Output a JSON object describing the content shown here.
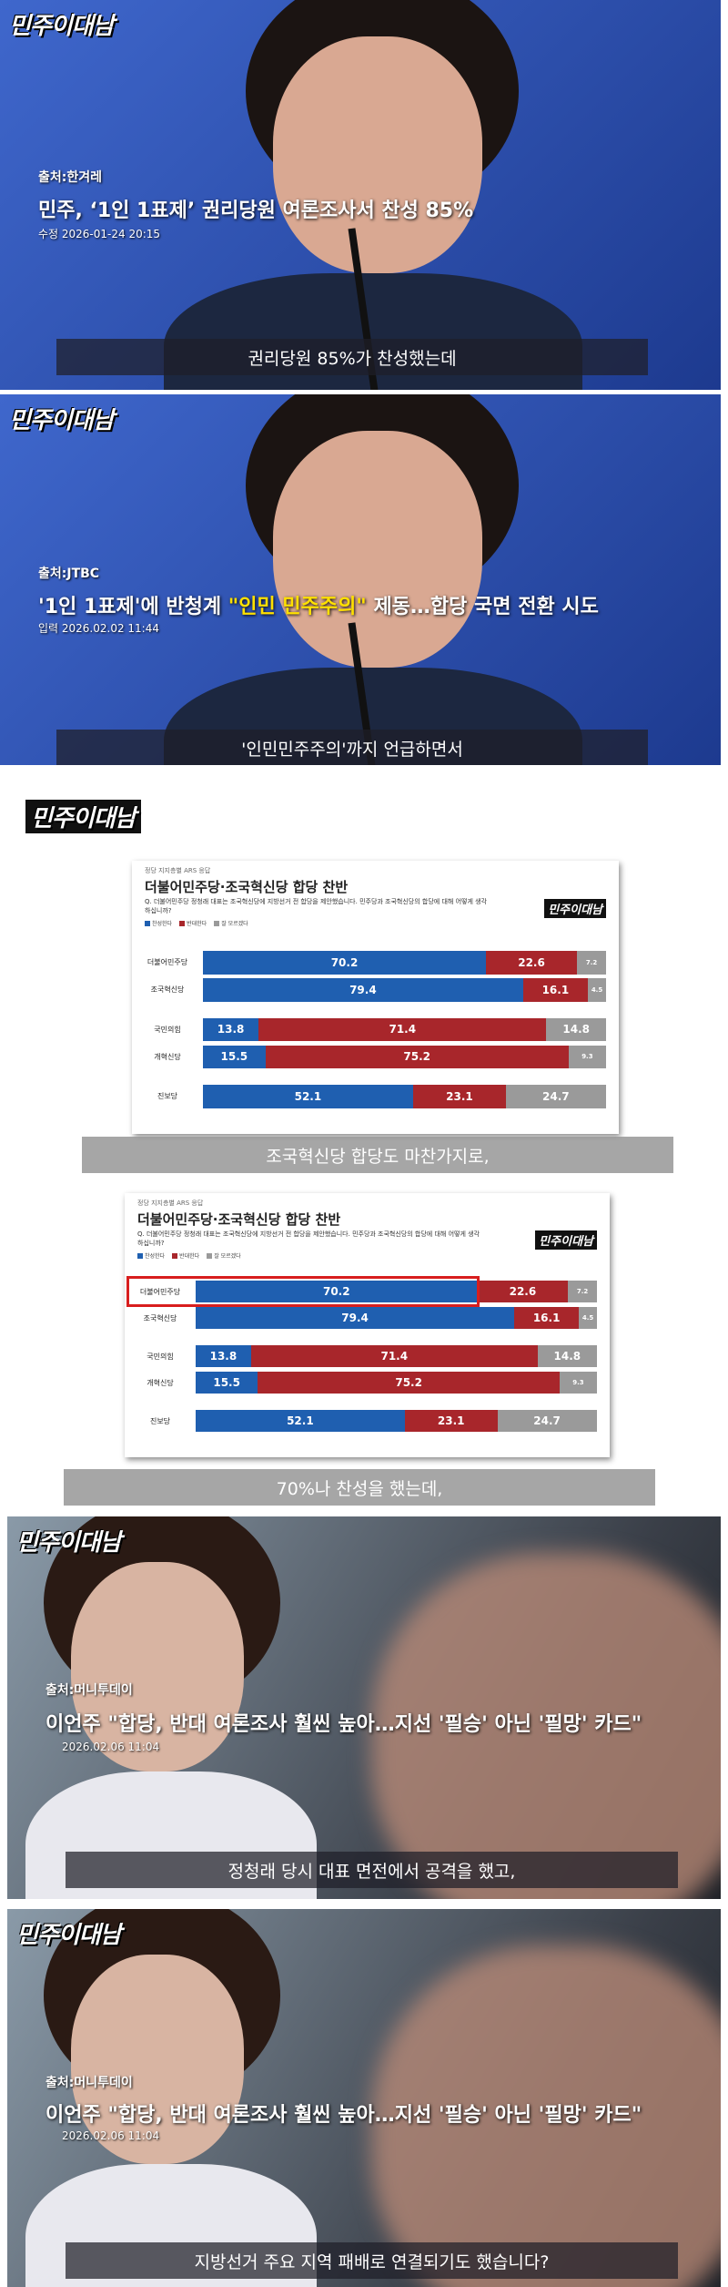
{
  "frames": [
    {
      "logo": "민주이대남",
      "source": "출처:한겨레",
      "headline": [
        {
          "text": "민주, ‘1인 1표제’ 권리당원 여론조사서 찬성 85%"
        }
      ],
      "date": "수정 2026-01-24 20:15",
      "caption": "권리당원 85%가 찬성했는데"
    },
    {
      "logo": "민주이대남",
      "source": "출처:JTBC",
      "headline": [
        {
          "text": "'1인 1표제'에 반청계 "
        },
        {
          "text": "\"인민 민주주의\"",
          "color": "#ffe000"
        },
        {
          "text": " 제동…합당 국면 전환 시도"
        }
      ],
      "date": "입력 2026.02.02 11:44",
      "caption": "'인민민주주의'까지 언급하면서"
    },
    {
      "logo": "민주이대남",
      "caption": "조국혁신당 합당도 마찬가지로,"
    },
    {
      "caption": "70%나 찬성을 했는데,"
    },
    {
      "logo": "민주이대남",
      "source": "출처:머니투데이",
      "headline": [
        {
          "text": "이언주 \"합당, 반대 여론조사 훨씬 높아…지선 '필승' 아닌 '필망' 카드\""
        }
      ],
      "date": "2026.02.06 11:04",
      "caption": "정청래 당시 대표 면전에서 공격을 했고,"
    },
    {
      "logo": "민주이대남",
      "source": "출처:머니투데이",
      "headline": [
        {
          "text": "이언주 \"합당, 반대 여론조사 훨씬 높아…지선 '필승' 아닌 '필망' 카드\""
        }
      ],
      "date": "2026.02.06 11:04",
      "caption": "지방선거 주요 지역 패배로 연결되기도 했습니다?"
    }
  ],
  "chart_data": [
    {
      "type": "bar",
      "orientation": "horizontal",
      "stacked": true,
      "header": "정당 지지층별 ARS 응답",
      "title": "더불어민주당·조국혁신당 합당 찬반",
      "question": "Q. 더불어민주당 정청래 대표는 조국혁신당에 지방선거 전 합당을 제안했습니다. 민주당과 조국혁신당의 합당에 대해 어떻게 생각하십니까?",
      "logo": "민주이대남",
      "xlim": [
        0,
        100
      ],
      "categories": [
        "더불어민주당",
        "조국혁신당",
        "국민의힘",
        "개혁신당",
        "진보당"
      ],
      "series": [
        {
          "name": "찬성한다",
          "color": "#1f5fb0",
          "values": [
            70.2,
            79.4,
            13.8,
            15.5,
            52.1
          ]
        },
        {
          "name": "반대한다",
          "color": "#a8262b",
          "values": [
            22.6,
            16.1,
            71.4,
            75.2,
            23.1
          ]
        },
        {
          "name": "잘 모르겠다",
          "color": "#9a9a9a",
          "values": [
            7.2,
            4.5,
            14.8,
            9.3,
            24.7
          ]
        }
      ]
    },
    {
      "type": "bar",
      "orientation": "horizontal",
      "stacked": true,
      "header": "정당 지지층별 ARS 응답",
      "title": "더불어민주당·조국혁신당 합당 찬반",
      "question": "Q. 더불어민주당 정청래 대표는 조국혁신당에 지방선거 전 합당을 제안했습니다. 민주당과 조국혁신당의 합당에 대해 어떻게 생각하십니까?",
      "logo": "민주이대남",
      "xlim": [
        0,
        100
      ],
      "categories": [
        "더불어민주당",
        "조국혁신당",
        "국민의힘",
        "개혁신당",
        "진보당"
      ],
      "series": [
        {
          "name": "찬성한다",
          "color": "#1f5fb0",
          "values": [
            70.2,
            79.4,
            13.8,
            15.5,
            52.1
          ]
        },
        {
          "name": "반대한다",
          "color": "#a8262b",
          "values": [
            22.6,
            16.1,
            71.4,
            75.2,
            23.1
          ]
        },
        {
          "name": "잘 모르겠다",
          "color": "#9a9a9a",
          "values": [
            7.2,
            4.5,
            14.8,
            9.3,
            24.7
          ]
        }
      ]
    }
  ]
}
